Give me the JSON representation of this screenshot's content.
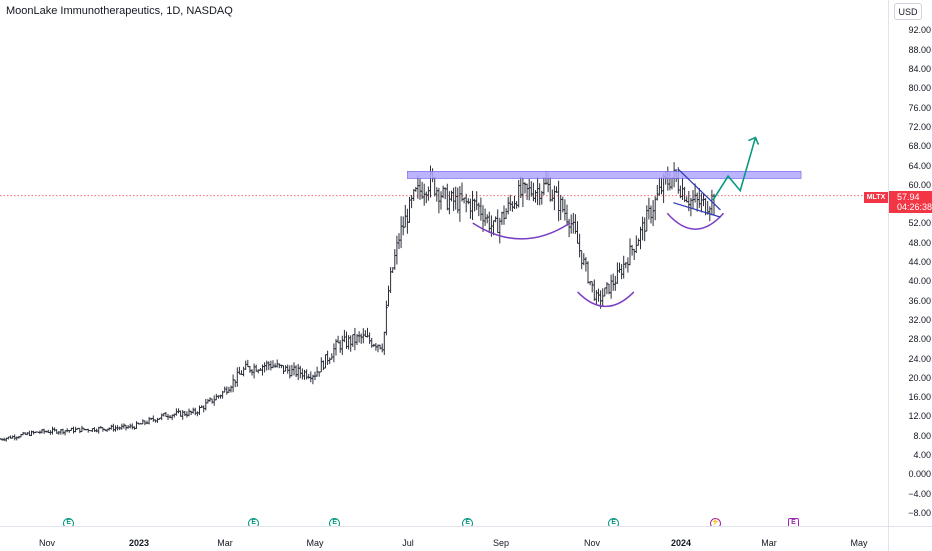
{
  "header": {
    "title": "MoonLake Immunotherapeutics, 1D, NASDAQ"
  },
  "price_axis": {
    "currency": "USD",
    "labels": [
      "92.00",
      "88.00",
      "84.00",
      "80.00",
      "76.00",
      "72.00",
      "68.00",
      "64.00",
      "60.00",
      "56.00",
      "52.00",
      "48.00",
      "44.00",
      "40.00",
      "36.00",
      "32.00",
      "28.00",
      "24.00",
      "20.00",
      "16.00",
      "12.00",
      "8.00",
      "4.00",
      "0.000",
      "−4.00",
      "−8.00"
    ],
    "last_price": "57.94",
    "countdown": "04:26:38",
    "ticker": "MLTX"
  },
  "time_axis": {
    "labels": [
      {
        "text": "Nov",
        "bold": false
      },
      {
        "text": "2023",
        "bold": true
      },
      {
        "text": "Mar",
        "bold": false
      },
      {
        "text": "May",
        "bold": false
      },
      {
        "text": "Jul",
        "bold": false
      },
      {
        "text": "Sep",
        "bold": false
      },
      {
        "text": "Nov",
        "bold": false
      },
      {
        "text": "2024",
        "bold": true
      },
      {
        "text": "Mar",
        "bold": false
      },
      {
        "text": "May",
        "bold": false
      }
    ]
  },
  "events": [
    {
      "kind": "earnings",
      "glyph": "E"
    },
    {
      "kind": "earnings",
      "glyph": "E"
    },
    {
      "kind": "earnings",
      "glyph": "E"
    },
    {
      "kind": "earnings",
      "glyph": "E"
    },
    {
      "kind": "earnings",
      "glyph": "E"
    },
    {
      "kind": "dividend",
      "glyph": "⚡"
    },
    {
      "kind": "future-earnings",
      "glyph": "E"
    }
  ],
  "colors": {
    "up": "#089981",
    "down": "#f23645",
    "bar": "#2a2e39",
    "resistance_fill": "#b2a8ff",
    "resistance_stroke": "#5b4de0",
    "arc": "#7b3fc4",
    "wedge": "#2f3bb5",
    "projection": "#089981",
    "last_price_line": "#f23645"
  },
  "chart_data": {
    "type": "ohlc",
    "symbol": "MLTX",
    "interval": "1D",
    "ylim": [
      -10,
      95
    ],
    "x_range": [
      "2022-10-15",
      "2024-05-20"
    ],
    "last_price": 57.94,
    "price_path": [
      [
        "2022-10-15",
        7.5
      ],
      [
        "2022-11-10",
        9.0
      ],
      [
        "2022-12-10",
        9.5
      ],
      [
        "2023-01-10",
        10.0
      ],
      [
        "2023-02-01",
        12.5
      ],
      [
        "2023-02-20",
        13.0
      ],
      [
        "2023-03-10",
        17.0
      ],
      [
        "2023-03-25",
        22.0
      ],
      [
        "2023-04-10",
        23.0
      ],
      [
        "2023-04-25",
        21.5
      ],
      [
        "2023-05-10",
        21.0
      ],
      [
        "2023-05-25",
        27.0
      ],
      [
        "2023-06-10",
        28.5
      ],
      [
        "2023-06-24",
        27.0
      ],
      [
        "2023-06-28",
        39.5
      ],
      [
        "2023-07-05",
        50.0
      ],
      [
        "2023-07-15",
        58.0
      ],
      [
        "2023-07-25",
        61.0
      ],
      [
        "2023-08-05",
        57.0
      ],
      [
        "2023-08-25",
        56.0
      ],
      [
        "2023-09-05",
        51.0
      ],
      [
        "2023-09-20",
        58.0
      ],
      [
        "2023-10-10",
        60.0
      ],
      [
        "2023-10-25",
        53.0
      ],
      [
        "2023-11-05",
        42.0
      ],
      [
        "2023-11-12",
        36.0
      ],
      [
        "2023-11-25",
        41.0
      ],
      [
        "2023-12-10",
        50.0
      ],
      [
        "2023-12-25",
        60.0
      ],
      [
        "2024-01-01",
        62.0
      ],
      [
        "2024-01-12",
        57.0
      ],
      [
        "2024-01-22",
        56.0
      ],
      [
        "2024-01-29",
        57.94
      ]
    ],
    "annotations": [
      {
        "type": "resistance-zone",
        "from": "2023-07-10",
        "to": "2024-03-25",
        "ylow": 61.5,
        "yhigh": 63.0
      },
      {
        "type": "arc",
        "from": "2023-08-22",
        "to": "2023-10-25",
        "bottom": 49.0
      },
      {
        "type": "arc",
        "from": "2023-10-30",
        "to": "2023-12-06",
        "bottom": 35.0
      },
      {
        "type": "arc",
        "from": "2023-12-28",
        "to": "2024-02-03",
        "bottom": 51.0
      },
      {
        "type": "falling-wedge",
        "upper": [
          [
            "2024-01-04",
            63.5
          ],
          [
            "2024-02-01",
            55.0
          ]
        ],
        "lower": [
          [
            "2024-01-01",
            56.5
          ],
          [
            "2024-02-01",
            53.5
          ]
        ]
      },
      {
        "type": "projection-arrow",
        "points": [
          [
            "2024-01-27",
            57.0
          ],
          [
            "2024-02-06",
            62.0
          ],
          [
            "2024-02-14",
            59.0
          ],
          [
            "2024-02-24",
            70.0
          ]
        ]
      }
    ]
  }
}
